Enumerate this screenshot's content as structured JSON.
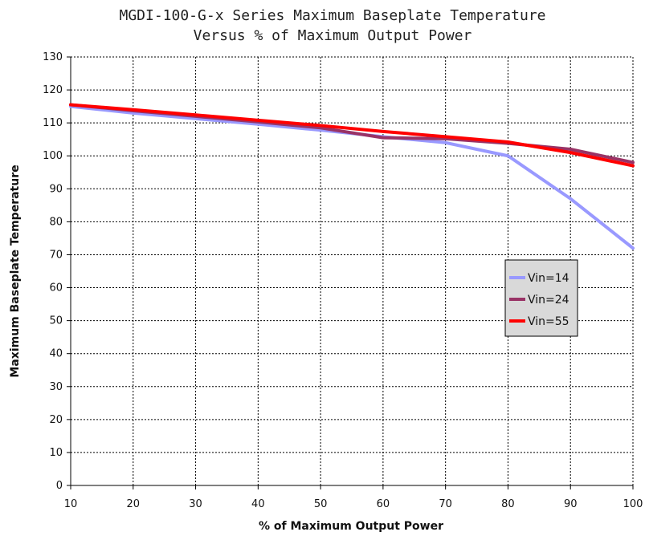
{
  "chart_data": {
    "type": "line",
    "title": "MGDI-100-G-x Series Maximum Baseplate Temperature",
    "subtitle": "Versus % of Maximum Output Power",
    "xlabel": "% of Maximum Output Power",
    "ylabel": "Maximum Baseplate Temperature",
    "xlim": [
      10,
      100
    ],
    "ylim": [
      0,
      130
    ],
    "x_ticks": [
      10,
      20,
      30,
      40,
      50,
      60,
      70,
      80,
      90,
      100
    ],
    "y_ticks": [
      0,
      10,
      20,
      30,
      40,
      50,
      60,
      70,
      80,
      90,
      100,
      110,
      120,
      130
    ],
    "grid": true,
    "legend_position": "right-center",
    "series": [
      {
        "name": "Vin=14",
        "color": "#9999FF",
        "x": [
          10,
          20,
          30,
          40,
          50,
          60,
          70,
          80,
          90,
          100
        ],
        "y": [
          115,
          113,
          111.3,
          109.6,
          107.8,
          105.8,
          104,
          100,
          87,
          72
        ]
      },
      {
        "name": "Vin=24",
        "color": "#993366",
        "x": [
          10,
          20,
          30,
          40,
          50,
          60,
          70,
          80,
          90,
          100
        ],
        "y": [
          115.5,
          113.7,
          112,
          110.3,
          108.5,
          105.5,
          105.2,
          103.8,
          102,
          98
        ]
      },
      {
        "name": "Vin=55",
        "color": "#FF0000",
        "x": [
          10,
          20,
          30,
          40,
          50,
          60,
          70,
          80,
          90,
          100
        ],
        "y": [
          115.5,
          114,
          112.4,
          110.8,
          109.2,
          107.4,
          105.8,
          104.2,
          101,
          97
        ]
      }
    ]
  }
}
